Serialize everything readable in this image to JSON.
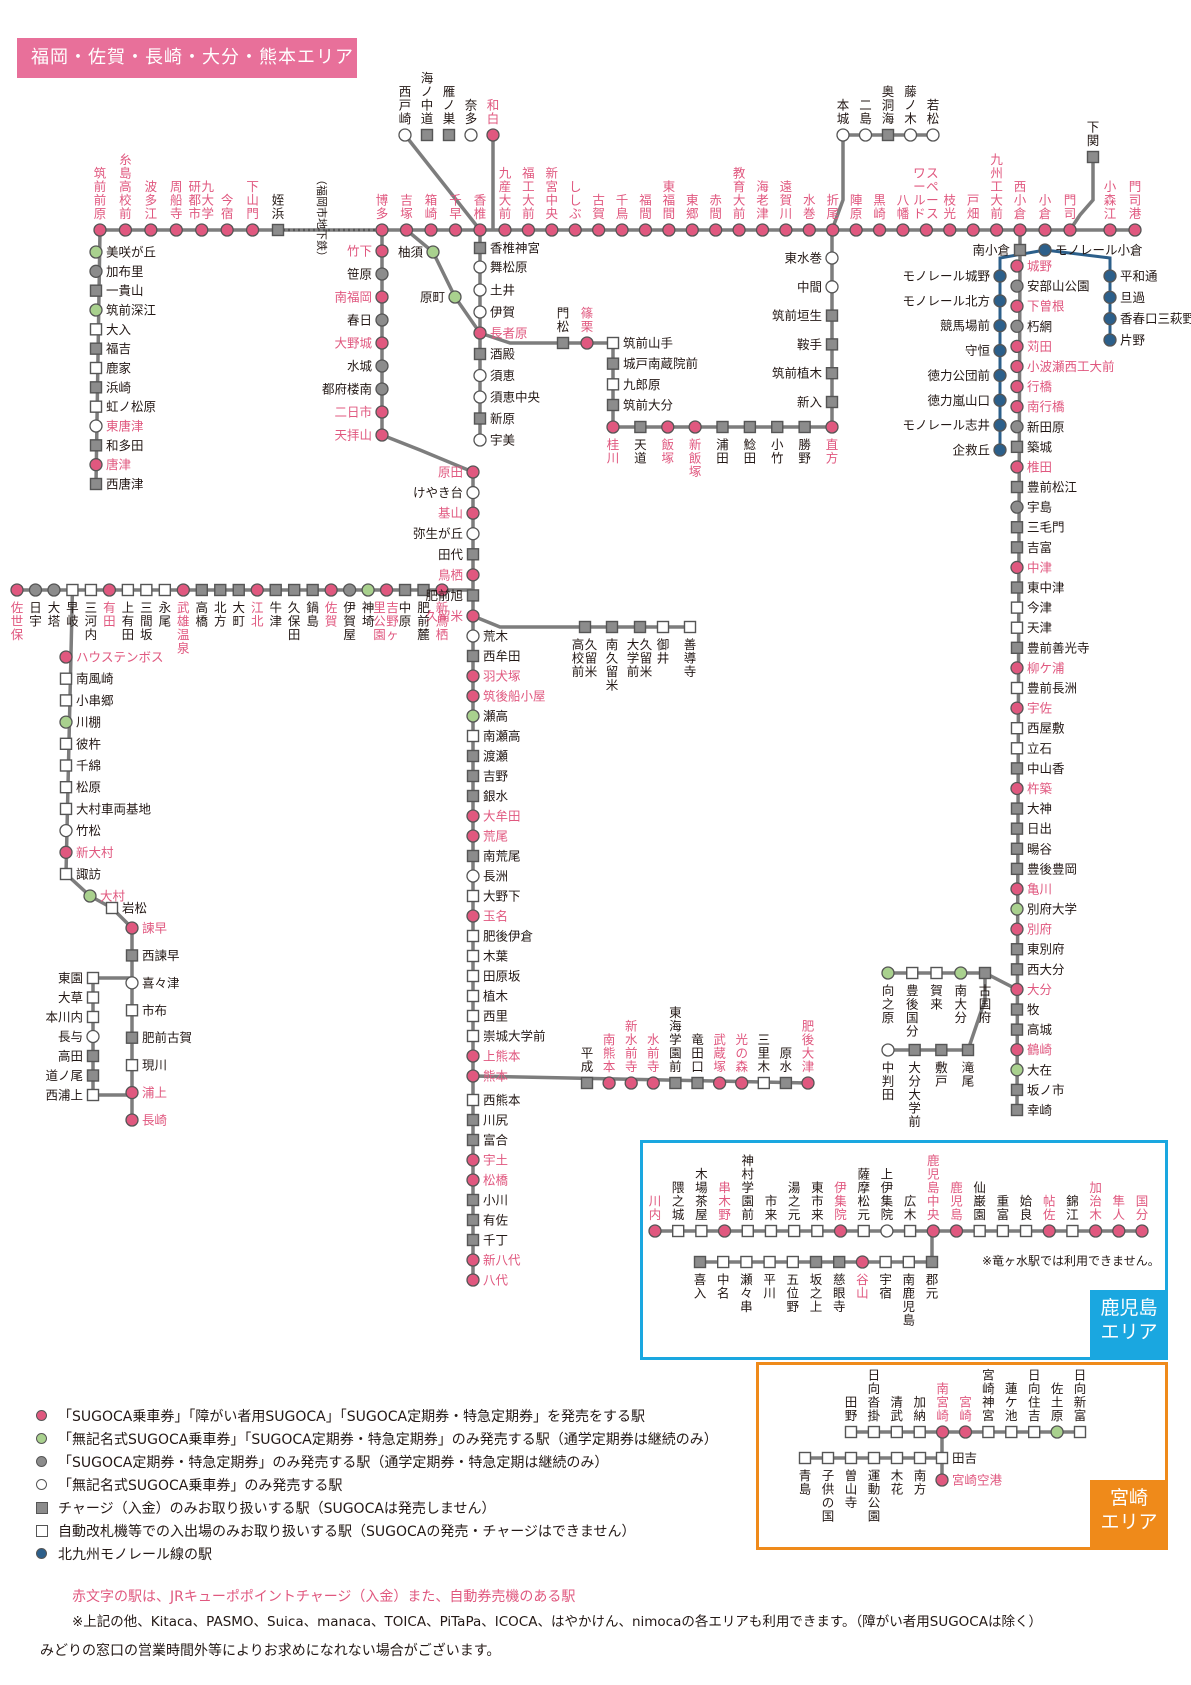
{
  "title": "福岡・佐賀・長崎・大分・熊本エリア",
  "colors": {
    "line": "#7d7d7d",
    "red_station": "#e0587f",
    "green_station": "#a9d18e",
    "gray_station": "#8c8c8c",
    "monorail": "#2c5f8a",
    "header": "#e8709a",
    "kagoshima": "#1aa7e0",
    "miyazaki": "#ef8a1a"
  },
  "areas": {
    "kagoshima": "鹿児島\nエリア",
    "miyazaki": "宮崎\nエリア"
  },
  "kagoshima_note": "※竜ヶ水駅では利用できません。",
  "legend": [
    {
      "type": "red",
      "text": "「SUGOCA乗車券」「障がい者用SUGOCA」「SUGOCA定期券・特急定期券」を発売をする駅"
    },
    {
      "type": "green",
      "text": "「無記名式SUGOCA乗車券」「SUGOCA定期券・特急定期券」のみ発売する駅（通学定期券は継続のみ）"
    },
    {
      "type": "gray",
      "text": "「SUGOCA定期券・特急定期券」のみ発売する駅（通学定期券・特急定期は継続のみ）"
    },
    {
      "type": "open",
      "text": "「無記名式SUGOCA乗車券」のみ発売する駅"
    },
    {
      "type": "charge",
      "text": "チャージ（入金）のみお取り扱いする駅（SUGOCAは発売しません）"
    },
    {
      "type": "gate",
      "text": "自動改札機等での入出場のみお取り扱いする駅（SUGOCAの発売・チャージはできません）"
    },
    {
      "type": "mono",
      "text": "北九州モノレール線の駅"
    }
  ],
  "note_red": "赤文字の駅は、JRキューポポイントチャージ（入金）また、自動券売機のある駅",
  "note_other": "※上記の他、Kitaca、PASMO、Suica、manaca、TOICA、PiTaPa、ICOCA、はやかけん、nimocaの各エリアも利用できます。（障がい者用SUGOCAは除く）",
  "note_midori": "みどりの窓口の営業時間外等によりお求めになれない場合がございます。",
  "subway_label": "（福岡市地下鉄）",
  "stations": [
    [
      "筑前前原",
      "red"
    ],
    [
      "糸島高校前",
      "red"
    ],
    [
      "波多江",
      "red"
    ],
    [
      "周船寺",
      "red"
    ],
    [
      "九大学研都市",
      "red"
    ],
    [
      "今宿",
      "red"
    ],
    [
      "下山門",
      "red"
    ],
    [
      "姪浜",
      "charge"
    ],
    [
      "博多",
      "red"
    ],
    [
      "吉塚",
      "red"
    ],
    [
      "箱崎",
      "red"
    ],
    [
      "千早",
      "red"
    ],
    [
      "香椎",
      "red"
    ],
    [
      "九産大前",
      "red"
    ],
    [
      "福工大前",
      "red"
    ],
    [
      "新宮中央",
      "red"
    ],
    [
      "ししぶ",
      "red"
    ],
    [
      "古賀",
      "red"
    ],
    [
      "千鳥",
      "red"
    ],
    [
      "福間",
      "red"
    ],
    [
      "東福間",
      "red"
    ],
    [
      "東郷",
      "red"
    ],
    [
      "赤間",
      "red"
    ],
    [
      "教育大前",
      "red"
    ],
    [
      "海老津",
      "red"
    ],
    [
      "遠賀川",
      "red"
    ],
    [
      "水巻",
      "red"
    ],
    [
      "折尾",
      "red"
    ],
    [
      "陣原",
      "red"
    ],
    [
      "黒崎",
      "red"
    ],
    [
      "八幡",
      "red"
    ],
    [
      "スペースワールド",
      "red"
    ],
    [
      "枝光",
      "red"
    ],
    [
      "戸畑",
      "red"
    ],
    [
      "九州工大前",
      "red"
    ],
    [
      "西小倉",
      "red"
    ],
    [
      "小倉",
      "red"
    ],
    [
      "門司",
      "red"
    ],
    [
      "小森江",
      "red"
    ],
    [
      "門司港",
      "red"
    ],
    [
      "下関",
      "charge"
    ],
    [
      "西戸崎",
      "open"
    ],
    [
      "海ノ中道",
      "charge"
    ],
    [
      "雁ノ巣",
      "charge"
    ],
    [
      "奈多",
      "open"
    ],
    [
      "和白",
      "red"
    ],
    [
      "本城",
      "open"
    ],
    [
      "二島",
      "open"
    ],
    [
      "奥洞海",
      "charge"
    ],
    [
      "藤ノ木",
      "open"
    ],
    [
      "若松",
      "open"
    ],
    [
      "美咲が丘",
      "green"
    ],
    [
      "加布里",
      "gray"
    ],
    [
      "一貴山",
      "charge"
    ],
    [
      "筑前深江",
      "green"
    ],
    [
      "大入",
      "gate"
    ],
    [
      "福吉",
      "charge"
    ],
    [
      "鹿家",
      "gate"
    ],
    [
      "浜崎",
      "charge"
    ],
    [
      "虹ノ松原",
      "gate"
    ],
    [
      "東唐津",
      "open"
    ],
    [
      "和多田",
      "charge"
    ],
    [
      "唐津",
      "red"
    ],
    [
      "西唐津",
      "charge"
    ],
    [
      "竹下",
      "red"
    ],
    [
      "笹原",
      "gray"
    ],
    [
      "南福岡",
      "red"
    ],
    [
      "春日",
      "gray"
    ],
    [
      "大野城",
      "red"
    ],
    [
      "水城",
      "gray"
    ],
    [
      "都府楼南",
      "gray"
    ],
    [
      "二日市",
      "red"
    ],
    [
      "天拝山",
      "red"
    ],
    [
      "柚須",
      "green"
    ],
    [
      "原町",
      "green"
    ],
    [
      "長者原",
      "red"
    ],
    [
      "香椎神宮",
      "charge"
    ],
    [
      "舞松原",
      "open"
    ],
    [
      "土井",
      "open"
    ],
    [
      "伊賀",
      "open"
    ],
    [
      "酒殿",
      "charge"
    ],
    [
      "須恵",
      "open"
    ],
    [
      "須恵中央",
      "open"
    ],
    [
      "新原",
      "charge"
    ],
    [
      "宇美",
      "open"
    ],
    [
      "門松",
      "charge"
    ],
    [
      "篠栗",
      "red"
    ],
    [
      "筑前山手",
      "gate"
    ],
    [
      "城戸南蔵院前",
      "charge"
    ],
    [
      "九郎原",
      "gate"
    ],
    [
      "筑前大分",
      "charge"
    ],
    [
      "桂川",
      "red"
    ],
    [
      "天道",
      "charge"
    ],
    [
      "飯塚",
      "red"
    ],
    [
      "新飯塚",
      "red"
    ],
    [
      "浦田",
      "charge"
    ],
    [
      "鯰田",
      "charge"
    ],
    [
      "小竹",
      "charge"
    ],
    [
      "勝野",
      "charge"
    ],
    [
      "直方",
      "red"
    ],
    [
      "東水巻",
      "open"
    ],
    [
      "中間",
      "open"
    ],
    [
      "筑前垣生",
      "charge"
    ],
    [
      "鞍手",
      "charge"
    ],
    [
      "筑前植木",
      "charge"
    ],
    [
      "新入",
      "charge"
    ],
    [
      "原田",
      "red"
    ],
    [
      "けやき台",
      "open"
    ],
    [
      "基山",
      "red"
    ],
    [
      "弥生が丘",
      "open"
    ],
    [
      "田代",
      "charge"
    ],
    [
      "鳥栖",
      "red"
    ],
    [
      "肥前旭",
      "charge"
    ],
    [
      "久留米",
      "red"
    ],
    [
      "荒木",
      "open"
    ],
    [
      "西牟田",
      "charge"
    ],
    [
      "羽犬塚",
      "red"
    ],
    [
      "筑後船小屋",
      "red"
    ],
    [
      "瀬高",
      "green"
    ],
    [
      "南瀬高",
      "gate"
    ],
    [
      "渡瀬",
      "charge"
    ],
    [
      "吉野",
      "charge"
    ],
    [
      "銀水",
      "charge"
    ],
    [
      "大牟田",
      "red"
    ],
    [
      "荒尾",
      "red"
    ],
    [
      "南荒尾",
      "charge"
    ],
    [
      "長洲",
      "open"
    ],
    [
      "大野下",
      "gate"
    ],
    [
      "玉名",
      "red"
    ],
    [
      "肥後伊倉",
      "gate"
    ],
    [
      "木葉",
      "gate"
    ],
    [
      "田原坂",
      "gate"
    ],
    [
      "植木",
      "gate"
    ],
    [
      "西里",
      "gate"
    ],
    [
      "崇城大学前",
      "gate"
    ],
    [
      "上熊本",
      "red"
    ],
    [
      "熊本",
      "red"
    ],
    [
      "西熊本",
      "gate"
    ],
    [
      "川尻",
      "charge"
    ],
    [
      "富合",
      "charge"
    ],
    [
      "宇土",
      "red"
    ],
    [
      "松橋",
      "red"
    ],
    [
      "小川",
      "charge"
    ],
    [
      "有佐",
      "charge"
    ],
    [
      "千丁",
      "charge"
    ],
    [
      "新八代",
      "red"
    ],
    [
      "八代",
      "red"
    ],
    [
      "久留米高校前",
      "charge"
    ],
    [
      "南久留米",
      "charge"
    ],
    [
      "久留米大学前",
      "charge"
    ],
    [
      "御井",
      "gate"
    ],
    [
      "善導寺",
      "gate"
    ],
    [
      "佐世保",
      "red"
    ],
    [
      "日宇",
      "gray"
    ],
    [
      "大塔",
      "gray"
    ],
    [
      "早岐",
      "gate"
    ],
    [
      "三河内",
      "gate"
    ],
    [
      "有田",
      "red"
    ],
    [
      "上有田",
      "gate"
    ],
    [
      "三間坂",
      "gate"
    ],
    [
      "永尾",
      "gate"
    ],
    [
      "武雄温泉",
      "red"
    ],
    [
      "高橋",
      "charge"
    ],
    [
      "北方",
      "charge"
    ],
    [
      "大町",
      "charge"
    ],
    [
      "江北",
      "red"
    ],
    [
      "牛津",
      "charge"
    ],
    [
      "久保田",
      "charge"
    ],
    [
      "鍋島",
      "charge"
    ],
    [
      "佐賀",
      "red"
    ],
    [
      "伊賀屋",
      "gray"
    ],
    [
      "神埼",
      "green"
    ],
    [
      "吉野ヶ里公園",
      "red"
    ],
    [
      "中原",
      "charge"
    ],
    [
      "肥前麓",
      "charge"
    ],
    [
      "新鳥栖",
      "red"
    ],
    [
      "ハウステンボス",
      "red"
    ],
    [
      "南風崎",
      "gate"
    ],
    [
      "小串郷",
      "gate"
    ],
    [
      "川棚",
      "green"
    ],
    [
      "彼杵",
      "gate"
    ],
    [
      "千綿",
      "gate"
    ],
    [
      "松原",
      "gate"
    ],
    [
      "大村車両基地",
      "gate"
    ],
    [
      "竹松",
      "open"
    ],
    [
      "新大村",
      "red"
    ],
    [
      "諏訪",
      "gate"
    ],
    [
      "大村",
      "green"
    ],
    [
      "岩松",
      "gate"
    ],
    [
      "諫早",
      "red"
    ],
    [
      "西諫早",
      "charge"
    ],
    [
      "喜々津",
      "open"
    ],
    [
      "市布",
      "gate"
    ],
    [
      "肥前古賀",
      "charge"
    ],
    [
      "現川",
      "gate"
    ],
    [
      "浦上",
      "red"
    ],
    [
      "長崎",
      "red"
    ],
    [
      "東園",
      "gate"
    ],
    [
      "大草",
      "gate"
    ],
    [
      "本川内",
      "gate"
    ],
    [
      "長与",
      "open"
    ],
    [
      "高田",
      "charge"
    ],
    [
      "道ノ尾",
      "charge"
    ],
    [
      "西浦上",
      "gate"
    ],
    [
      "平成",
      "charge"
    ],
    [
      "南熊本",
      "red"
    ],
    [
      "新水前寺",
      "red"
    ],
    [
      "水前寺",
      "red"
    ],
    [
      "東海学園前",
      "charge"
    ],
    [
      "竜田口",
      "charge"
    ],
    [
      "武蔵塚",
      "red"
    ],
    [
      "光の森",
      "red"
    ],
    [
      "三里木",
      "gate"
    ],
    [
      "原水",
      "charge"
    ],
    [
      "肥後大津",
      "red"
    ],
    [
      "南小倉",
      "charge"
    ],
    [
      "城野",
      "red"
    ],
    [
      "安部山公園",
      "gray"
    ],
    [
      "下曽根",
      "red"
    ],
    [
      "朽網",
      "gray"
    ],
    [
      "苅田",
      "red"
    ],
    [
      "小波瀬西工大前",
      "red"
    ],
    [
      "行橋",
      "red"
    ],
    [
      "南行橋",
      "red"
    ],
    [
      "新田原",
      "gray"
    ],
    [
      "築城",
      "charge"
    ],
    [
      "椎田",
      "red"
    ],
    [
      "豊前松江",
      "charge"
    ],
    [
      "宇島",
      "gray"
    ],
    [
      "三毛門",
      "charge"
    ],
    [
      "吉富",
      "charge"
    ],
    [
      "中津",
      "red"
    ],
    [
      "東中津",
      "charge"
    ],
    [
      "今津",
      "gate"
    ],
    [
      "天津",
      "gate"
    ],
    [
      "豊前善光寺",
      "charge"
    ],
    [
      "柳ケ浦",
      "red"
    ],
    [
      "豊前長洲",
      "gate"
    ],
    [
      "宇佐",
      "red"
    ],
    [
      "西屋敷",
      "gate"
    ],
    [
      "立石",
      "gate"
    ],
    [
      "中山香",
      "charge"
    ],
    [
      "杵築",
      "red"
    ],
    [
      "大神",
      "charge"
    ],
    [
      "日出",
      "charge"
    ],
    [
      "暘谷",
      "charge"
    ],
    [
      "豊後豊岡",
      "charge"
    ],
    [
      "亀川",
      "red"
    ],
    [
      "別府大学",
      "green"
    ],
    [
      "別府",
      "red"
    ],
    [
      "東別府",
      "charge"
    ],
    [
      "西大分",
      "charge"
    ],
    [
      "大分",
      "red"
    ],
    [
      "牧",
      "charge"
    ],
    [
      "高城",
      "charge"
    ],
    [
      "鶴崎",
      "red"
    ],
    [
      "大在",
      "green"
    ],
    [
      "坂ノ市",
      "charge"
    ],
    [
      "幸崎",
      "charge"
    ],
    [
      "古国府",
      "charge"
    ],
    [
      "南大分",
      "green"
    ],
    [
      "賀来",
      "gate"
    ],
    [
      "豊後国分",
      "gate"
    ],
    [
      "向之原",
      "green"
    ],
    [
      "滝尾",
      "charge"
    ],
    [
      "敷戸",
      "charge"
    ],
    [
      "大分大学前",
      "charge"
    ],
    [
      "中判田",
      "open"
    ],
    [
      "郡元",
      "charge"
    ],
    [
      "モノレール小倉",
      "mono"
    ],
    [
      "平和通",
      "mono"
    ],
    [
      "旦過",
      "mono"
    ],
    [
      "香春口三萩野",
      "mono"
    ],
    [
      "片野",
      "mono"
    ],
    [
      "モノレール城野",
      "mono"
    ],
    [
      "モノレール北方",
      "mono"
    ],
    [
      "競馬場前",
      "mono"
    ],
    [
      "守恒",
      "mono"
    ],
    [
      "徳力公団前",
      "mono"
    ],
    [
      "徳力嵐山口",
      "mono"
    ],
    [
      "モノレール志井",
      "mono"
    ],
    [
      "企救丘",
      "mono"
    ],
    [
      "川内",
      "red"
    ],
    [
      "隈之城",
      "gate"
    ],
    [
      "木場茶屋",
      "gate"
    ],
    [
      "串木野",
      "red"
    ],
    [
      "神村学園前",
      "gate"
    ],
    [
      "市来",
      "gate"
    ],
    [
      "湯之元",
      "gate"
    ],
    [
      "東市来",
      "gate"
    ],
    [
      "伊集院",
      "red"
    ],
    [
      "薩摩松元",
      "gate"
    ],
    [
      "上伊集院",
      "open"
    ],
    [
      "広木",
      "gate"
    ],
    [
      "鹿児島中央",
      "red"
    ],
    [
      "鹿児島",
      "red"
    ],
    [
      "仙巌園",
      "gate"
    ],
    [
      "重富",
      "gate"
    ],
    [
      "姶良",
      "gate"
    ],
    [
      "帖佐",
      "red"
    ],
    [
      "錦江",
      "gate"
    ],
    [
      "加治木",
      "red"
    ],
    [
      "隼人",
      "red"
    ],
    [
      "国分",
      "red"
    ],
    [
      "喜入",
      "charge"
    ],
    [
      "中名",
      "gate"
    ],
    [
      "瀬々串",
      "gate"
    ],
    [
      "平川",
      "gate"
    ],
    [
      "五位野",
      "gate"
    ],
    [
      "坂之上",
      "charge"
    ],
    [
      "慈眼寺",
      "charge"
    ],
    [
      "谷山",
      "red"
    ],
    [
      "宇宿",
      "gate"
    ],
    [
      "南鹿児島",
      "gate"
    ],
    [
      "田野",
      "gate"
    ],
    [
      "日向沓掛",
      "gate"
    ],
    [
      "清武",
      "gate"
    ],
    [
      "加納",
      "gate"
    ],
    [
      "南宮崎",
      "red"
    ],
    [
      "宮崎",
      "red"
    ],
    [
      "宮崎神宮",
      "gate"
    ],
    [
      "蓮ケ池",
      "gate"
    ],
    [
      "日向住吉",
      "gate"
    ],
    [
      "佐土原",
      "green"
    ],
    [
      "日向新富",
      "gate"
    ],
    [
      "田吉",
      "gate"
    ],
    [
      "宮崎空港",
      "red"
    ],
    [
      "南方",
      "gate"
    ],
    [
      "木花",
      "gate"
    ],
    [
      "運動公園",
      "gate"
    ],
    [
      "曽山寺",
      "gate"
    ],
    [
      "子供の国",
      "gate"
    ],
    [
      "青島",
      "gate"
    ]
  ]
}
